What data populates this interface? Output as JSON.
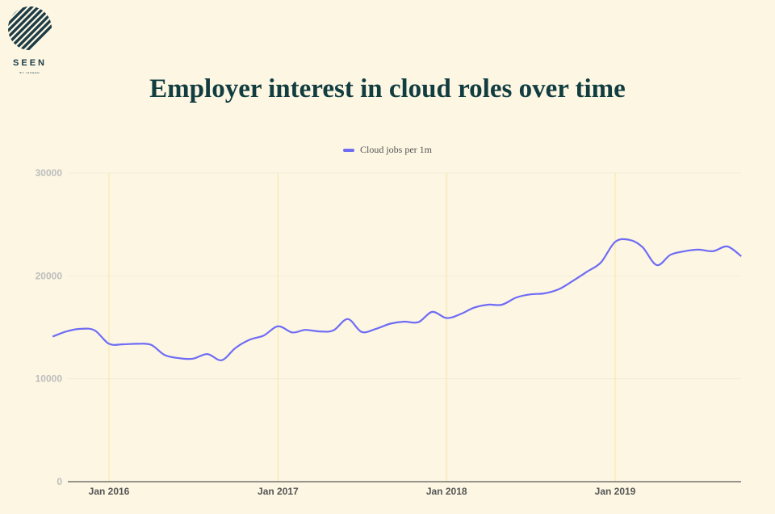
{
  "logo": {
    "text": "SEEN",
    "subtext": "BY INDEED"
  },
  "header": {
    "title": "Employer interest in cloud roles over time"
  },
  "colors": {
    "series": "#6f6cf5",
    "vgrid": "#f7e6a6",
    "hgrid": "#f3ecd7",
    "axis": "#333333"
  },
  "chart_data": {
    "type": "line",
    "title": "Employer interest in cloud roles over time",
    "xlabel": "",
    "ylabel": "",
    "ylim": [
      0,
      30000
    ],
    "yticks": [
      "0",
      "10000",
      "20000",
      "30000"
    ],
    "xtick_labels": [
      "Jan 2016",
      "Jan 2017",
      "Jan 2018",
      "Jan 2019"
    ],
    "grid": "vertical lines at year marks",
    "legend": "top-center",
    "series": [
      {
        "name": "Cloud jobs per 1m",
        "points": [
          [
            "2015-09-01",
            14100
          ],
          [
            "2015-10-01",
            14600
          ],
          [
            "2015-11-01",
            14850
          ],
          [
            "2015-12-01",
            14700
          ],
          [
            "2016-01-01",
            13400
          ],
          [
            "2016-02-01",
            13350
          ],
          [
            "2016-03-01",
            13400
          ],
          [
            "2016-04-01",
            13300
          ],
          [
            "2016-05-01",
            12300
          ],
          [
            "2016-06-01",
            12000
          ],
          [
            "2016-07-01",
            11950
          ],
          [
            "2016-08-01",
            12400
          ],
          [
            "2016-09-01",
            11800
          ],
          [
            "2016-10-01",
            13000
          ],
          [
            "2016-11-01",
            13800
          ],
          [
            "2016-12-01",
            14200
          ],
          [
            "2017-01-01",
            15100
          ],
          [
            "2017-02-01",
            14500
          ],
          [
            "2017-03-01",
            14750
          ],
          [
            "2017-04-01",
            14600
          ],
          [
            "2017-05-01",
            14700
          ],
          [
            "2017-06-01",
            15800
          ],
          [
            "2017-07-01",
            14550
          ],
          [
            "2017-08-01",
            14850
          ],
          [
            "2017-09-01",
            15350
          ],
          [
            "2017-10-01",
            15550
          ],
          [
            "2017-11-01",
            15500
          ],
          [
            "2017-12-01",
            16500
          ],
          [
            "2018-01-01",
            15900
          ],
          [
            "2018-02-01",
            16300
          ],
          [
            "2018-03-01",
            16900
          ],
          [
            "2018-04-01",
            17200
          ],
          [
            "2018-05-01",
            17200
          ],
          [
            "2018-06-01",
            17900
          ],
          [
            "2018-07-01",
            18200
          ],
          [
            "2018-08-01",
            18300
          ],
          [
            "2018-09-01",
            18700
          ],
          [
            "2018-10-01",
            19500
          ],
          [
            "2018-11-01",
            20400
          ],
          [
            "2018-12-01",
            21300
          ],
          [
            "2019-01-01",
            23300
          ],
          [
            "2019-02-01",
            23500
          ],
          [
            "2019-03-01",
            22800
          ],
          [
            "2019-04-01",
            21050
          ],
          [
            "2019-05-01",
            22050
          ],
          [
            "2019-06-01",
            22400
          ],
          [
            "2019-07-01",
            22550
          ],
          [
            "2019-08-01",
            22400
          ],
          [
            "2019-09-01",
            22850
          ],
          [
            "2019-10-01",
            21900
          ]
        ]
      }
    ]
  }
}
